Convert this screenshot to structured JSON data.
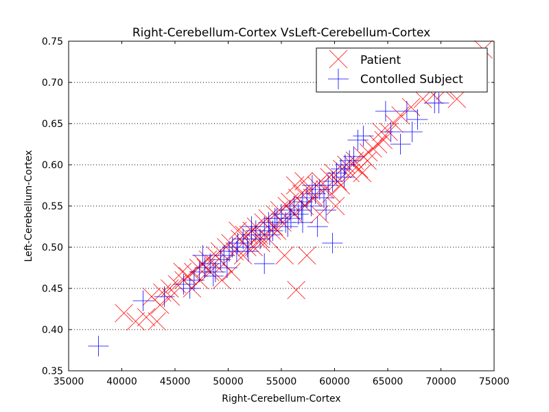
{
  "chart_data": {
    "type": "scatter",
    "title": "Right-Cerebellum-Cortex VsLeft-Cerebellum-Cortex",
    "xlabel": "Right-Cerebellum-Cortex",
    "ylabel": "Left-Cerebellum-Cortex",
    "xlim": [
      35000,
      75000
    ],
    "ylim": [
      0.35,
      0.75
    ],
    "xticks": [
      "35000",
      "40000",
      "45000",
      "50000",
      "55000",
      "60000",
      "65000",
      "70000",
      "75000"
    ],
    "yticks": [
      "0.35",
      "0.40",
      "0.45",
      "0.50",
      "0.55",
      "0.60",
      "0.65",
      "0.70",
      "0.75"
    ],
    "grid": "horizontal dotted",
    "legend_position": "top-right",
    "series": [
      {
        "name": "Patient",
        "marker": "x",
        "color": "#ff0000",
        "x": [
          40200,
          41300,
          42300,
          43300,
          42800,
          43800,
          44500,
          45200,
          45800,
          46200,
          46700,
          47200,
          47600,
          48100,
          48300,
          48800,
          49200,
          49600,
          49800,
          50200,
          50600,
          51100,
          51500,
          51800,
          52200,
          52600,
          53000,
          53300,
          53700,
          54100,
          54400,
          54800,
          55100,
          55500,
          55800,
          56200,
          56500,
          56900,
          57200,
          57600,
          57900,
          58300,
          58700,
          59100,
          59500,
          59900,
          60300,
          60700,
          61100,
          61500,
          61900,
          62300,
          62700,
          63200,
          63600,
          64100,
          64600,
          65100,
          65600,
          66200,
          67200,
          68300,
          69300,
          70400,
          71500,
          72200,
          74000,
          56400,
          55300,
          50300,
          52400,
          53800,
          57400,
          58600,
          60100,
          49400,
          47900,
          44600,
          43600,
          46600,
          51400,
          54600,
          56300,
          59700,
          61700,
          63100,
          64400,
          58100,
          55900,
          53100,
          48700,
          45700,
          47300,
          52900,
          60600,
          62600,
          57100,
          54300,
          51900,
          50900
        ],
        "y": [
          0.42,
          0.41,
          0.415,
          0.41,
          0.44,
          0.445,
          0.45,
          0.455,
          0.46,
          0.465,
          0.47,
          0.475,
          0.48,
          0.485,
          0.47,
          0.49,
          0.495,
          0.48,
          0.5,
          0.505,
          0.495,
          0.51,
          0.515,
          0.5,
          0.52,
          0.525,
          0.51,
          0.53,
          0.535,
          0.52,
          0.54,
          0.545,
          0.53,
          0.55,
          0.555,
          0.54,
          0.56,
          0.565,
          0.55,
          0.57,
          0.56,
          0.575,
          0.58,
          0.57,
          0.585,
          0.59,
          0.58,
          0.595,
          0.6,
          0.59,
          0.605,
          0.595,
          0.61,
          0.615,
          0.62,
          0.625,
          0.63,
          0.64,
          0.65,
          0.66,
          0.67,
          0.68,
          0.685,
          0.69,
          0.68,
          0.7,
          0.74,
          0.448,
          0.49,
          0.47,
          0.5,
          0.51,
          0.49,
          0.54,
          0.55,
          0.46,
          0.475,
          0.44,
          0.43,
          0.45,
          0.49,
          0.52,
          0.575,
          0.565,
          0.6,
          0.605,
          0.64,
          0.56,
          0.545,
          0.505,
          0.48,
          0.47,
          0.46,
          0.515,
          0.575,
          0.59,
          0.58,
          0.525,
          0.515,
          0.52
        ]
      },
      {
        "name": "Contolled Subject",
        "marker": "+",
        "color": "#0000ff",
        "x": [
          37800,
          42000,
          44000,
          45800,
          46800,
          47300,
          47800,
          48300,
          48800,
          49300,
          49600,
          50100,
          50400,
          50900,
          51400,
          51800,
          52200,
          52600,
          53000,
          53400,
          53800,
          54200,
          54600,
          55000,
          55400,
          55800,
          56200,
          56600,
          57000,
          57400,
          57800,
          58200,
          58600,
          59000,
          59400,
          59800,
          60200,
          60600,
          61000,
          61400,
          61800,
          62200,
          62700,
          64800,
          65300,
          66200,
          66800,
          67300,
          67800,
          69400,
          69800,
          59800,
          58400,
          57000,
          53400,
          50800,
          48600,
          46400,
          52200,
          55600,
          54400,
          56900,
          59200,
          60900,
          49900,
          51900,
          53900,
          55900,
          57900,
          47600
        ],
        "y": [
          0.38,
          0.435,
          0.44,
          0.455,
          0.46,
          0.47,
          0.475,
          0.48,
          0.47,
          0.485,
          0.49,
          0.495,
          0.5,
          0.505,
          0.51,
          0.5,
          0.515,
          0.52,
          0.51,
          0.525,
          0.53,
          0.52,
          0.535,
          0.54,
          0.53,
          0.545,
          0.55,
          0.54,
          0.555,
          0.56,
          0.55,
          0.565,
          0.57,
          0.56,
          0.575,
          0.58,
          0.59,
          0.595,
          0.6,
          0.605,
          0.61,
          0.63,
          0.635,
          0.665,
          0.64,
          0.625,
          0.665,
          0.64,
          0.655,
          0.675,
          0.675,
          0.505,
          0.525,
          0.53,
          0.48,
          0.495,
          0.465,
          0.45,
          0.525,
          0.525,
          0.535,
          0.545,
          0.545,
          0.585,
          0.475,
          0.495,
          0.515,
          0.535,
          0.575,
          0.49
        ]
      }
    ]
  }
}
